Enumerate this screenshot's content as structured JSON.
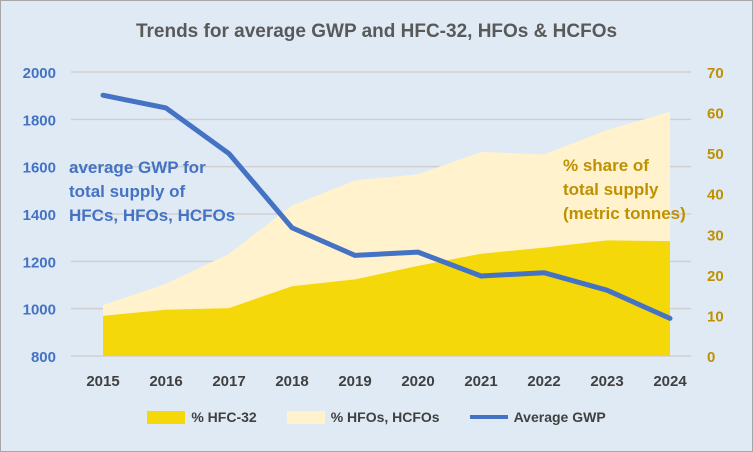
{
  "chart_data": {
    "type": "area",
    "title": "Trends for average GWP and HFC-32, HFOs & HCFOs",
    "categories": [
      "2015",
      "2016",
      "2017",
      "2018",
      "2019",
      "2020",
      "2021",
      "2022",
      "2023",
      "2024"
    ],
    "y_left": {
      "ylim": [
        800,
        2000
      ],
      "ticks": [
        "800",
        "1000",
        "1200",
        "1400",
        "1600",
        "1800",
        "2000"
      ],
      "label": "average GWP for\ntotal supply of\nHFCs, HFOs, HCFOs"
    },
    "y_right": {
      "ylim": [
        0,
        70
      ],
      "ticks": [
        "0",
        "10",
        "20",
        "30",
        "40",
        "50",
        "60",
        "70"
      ],
      "label": "% share of\ntotal supply\n(metric tonnes)"
    },
    "series": [
      {
        "name": "% HFC-32",
        "type": "stacked-area",
        "axis": "right",
        "color": "#f5d80a",
        "values": [
          9.9,
          11.4,
          11.8,
          17.2,
          18.9,
          22.2,
          25.2,
          26.7,
          28.5,
          28.3
        ]
      },
      {
        "name": "% HFOs, HCFOs",
        "type": "stacked-area",
        "axis": "right",
        "color": "#fff2cc",
        "values": [
          2.7,
          6.4,
          13.4,
          19.9,
          24.4,
          22.6,
          25.1,
          23.0,
          27.2,
          31.9
        ]
      },
      {
        "name": "Average GWP",
        "type": "line",
        "axis": "left",
        "color": "#4472c4",
        "values": [
          1902,
          1848,
          1655,
          1342,
          1225,
          1239,
          1138,
          1152,
          1078,
          959
        ]
      }
    ],
    "grid": true,
    "legend_position": "bottom"
  }
}
